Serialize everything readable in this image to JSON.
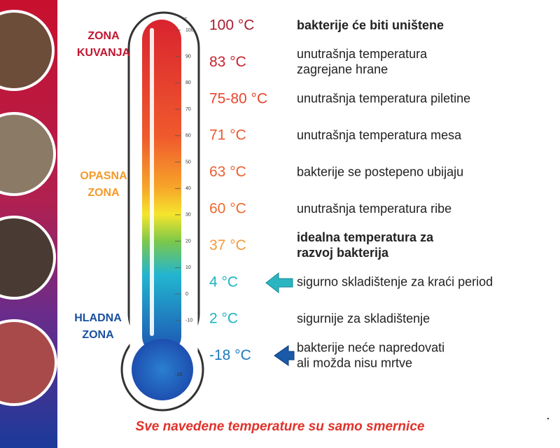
{
  "zones": [
    {
      "lines": [
        "ZONA",
        "KUVANJA"
      ]
    },
    {
      "lines": [
        "OPASNA",
        "ZONA"
      ]
    },
    {
      "lines": [
        "HLADNA",
        "ZONA"
      ]
    }
  ],
  "scale": {
    "unit": "°C",
    "ticks": [
      100,
      90,
      80,
      70,
      60,
      50,
      40,
      30,
      20,
      10,
      0,
      -10
    ],
    "bulb_label": -18
  },
  "rows": [
    {
      "temperature": "100 °C",
      "description": [
        "bakterije će biti uništene"
      ]
    },
    {
      "temperature": "83 °C",
      "description": [
        "unutrašnja temperatura",
        "zagrejane hrane"
      ]
    },
    {
      "temperature": "75-80 °C",
      "description": [
        "unutrašnja temperatura piletine"
      ]
    },
    {
      "temperature": "71 °C",
      "description": [
        "unutrašnja temperatura mesa"
      ]
    },
    {
      "temperature": "63 °C",
      "description": [
        "bakterije se postepeno ubijaju"
      ]
    },
    {
      "temperature": "60 °C",
      "description": [
        "unutrašnja temperatura ribe"
      ]
    },
    {
      "temperature": "37 °C",
      "description": [
        "idealna temperatura za",
        "razvoj bakterija"
      ]
    },
    {
      "temperature": "4 °C",
      "description": [
        "sigurno skladištenje za kraći period"
      ]
    },
    {
      "temperature": "2 °C",
      "description": [
        "sigurnije za skladištenje"
      ]
    },
    {
      "temperature": "-18 °C",
      "description": [
        "bakterije neće napredovati",
        "ali možda nisu mrtve"
      ]
    }
  ],
  "footer": "Sve navedene temperature su samo smernice"
}
